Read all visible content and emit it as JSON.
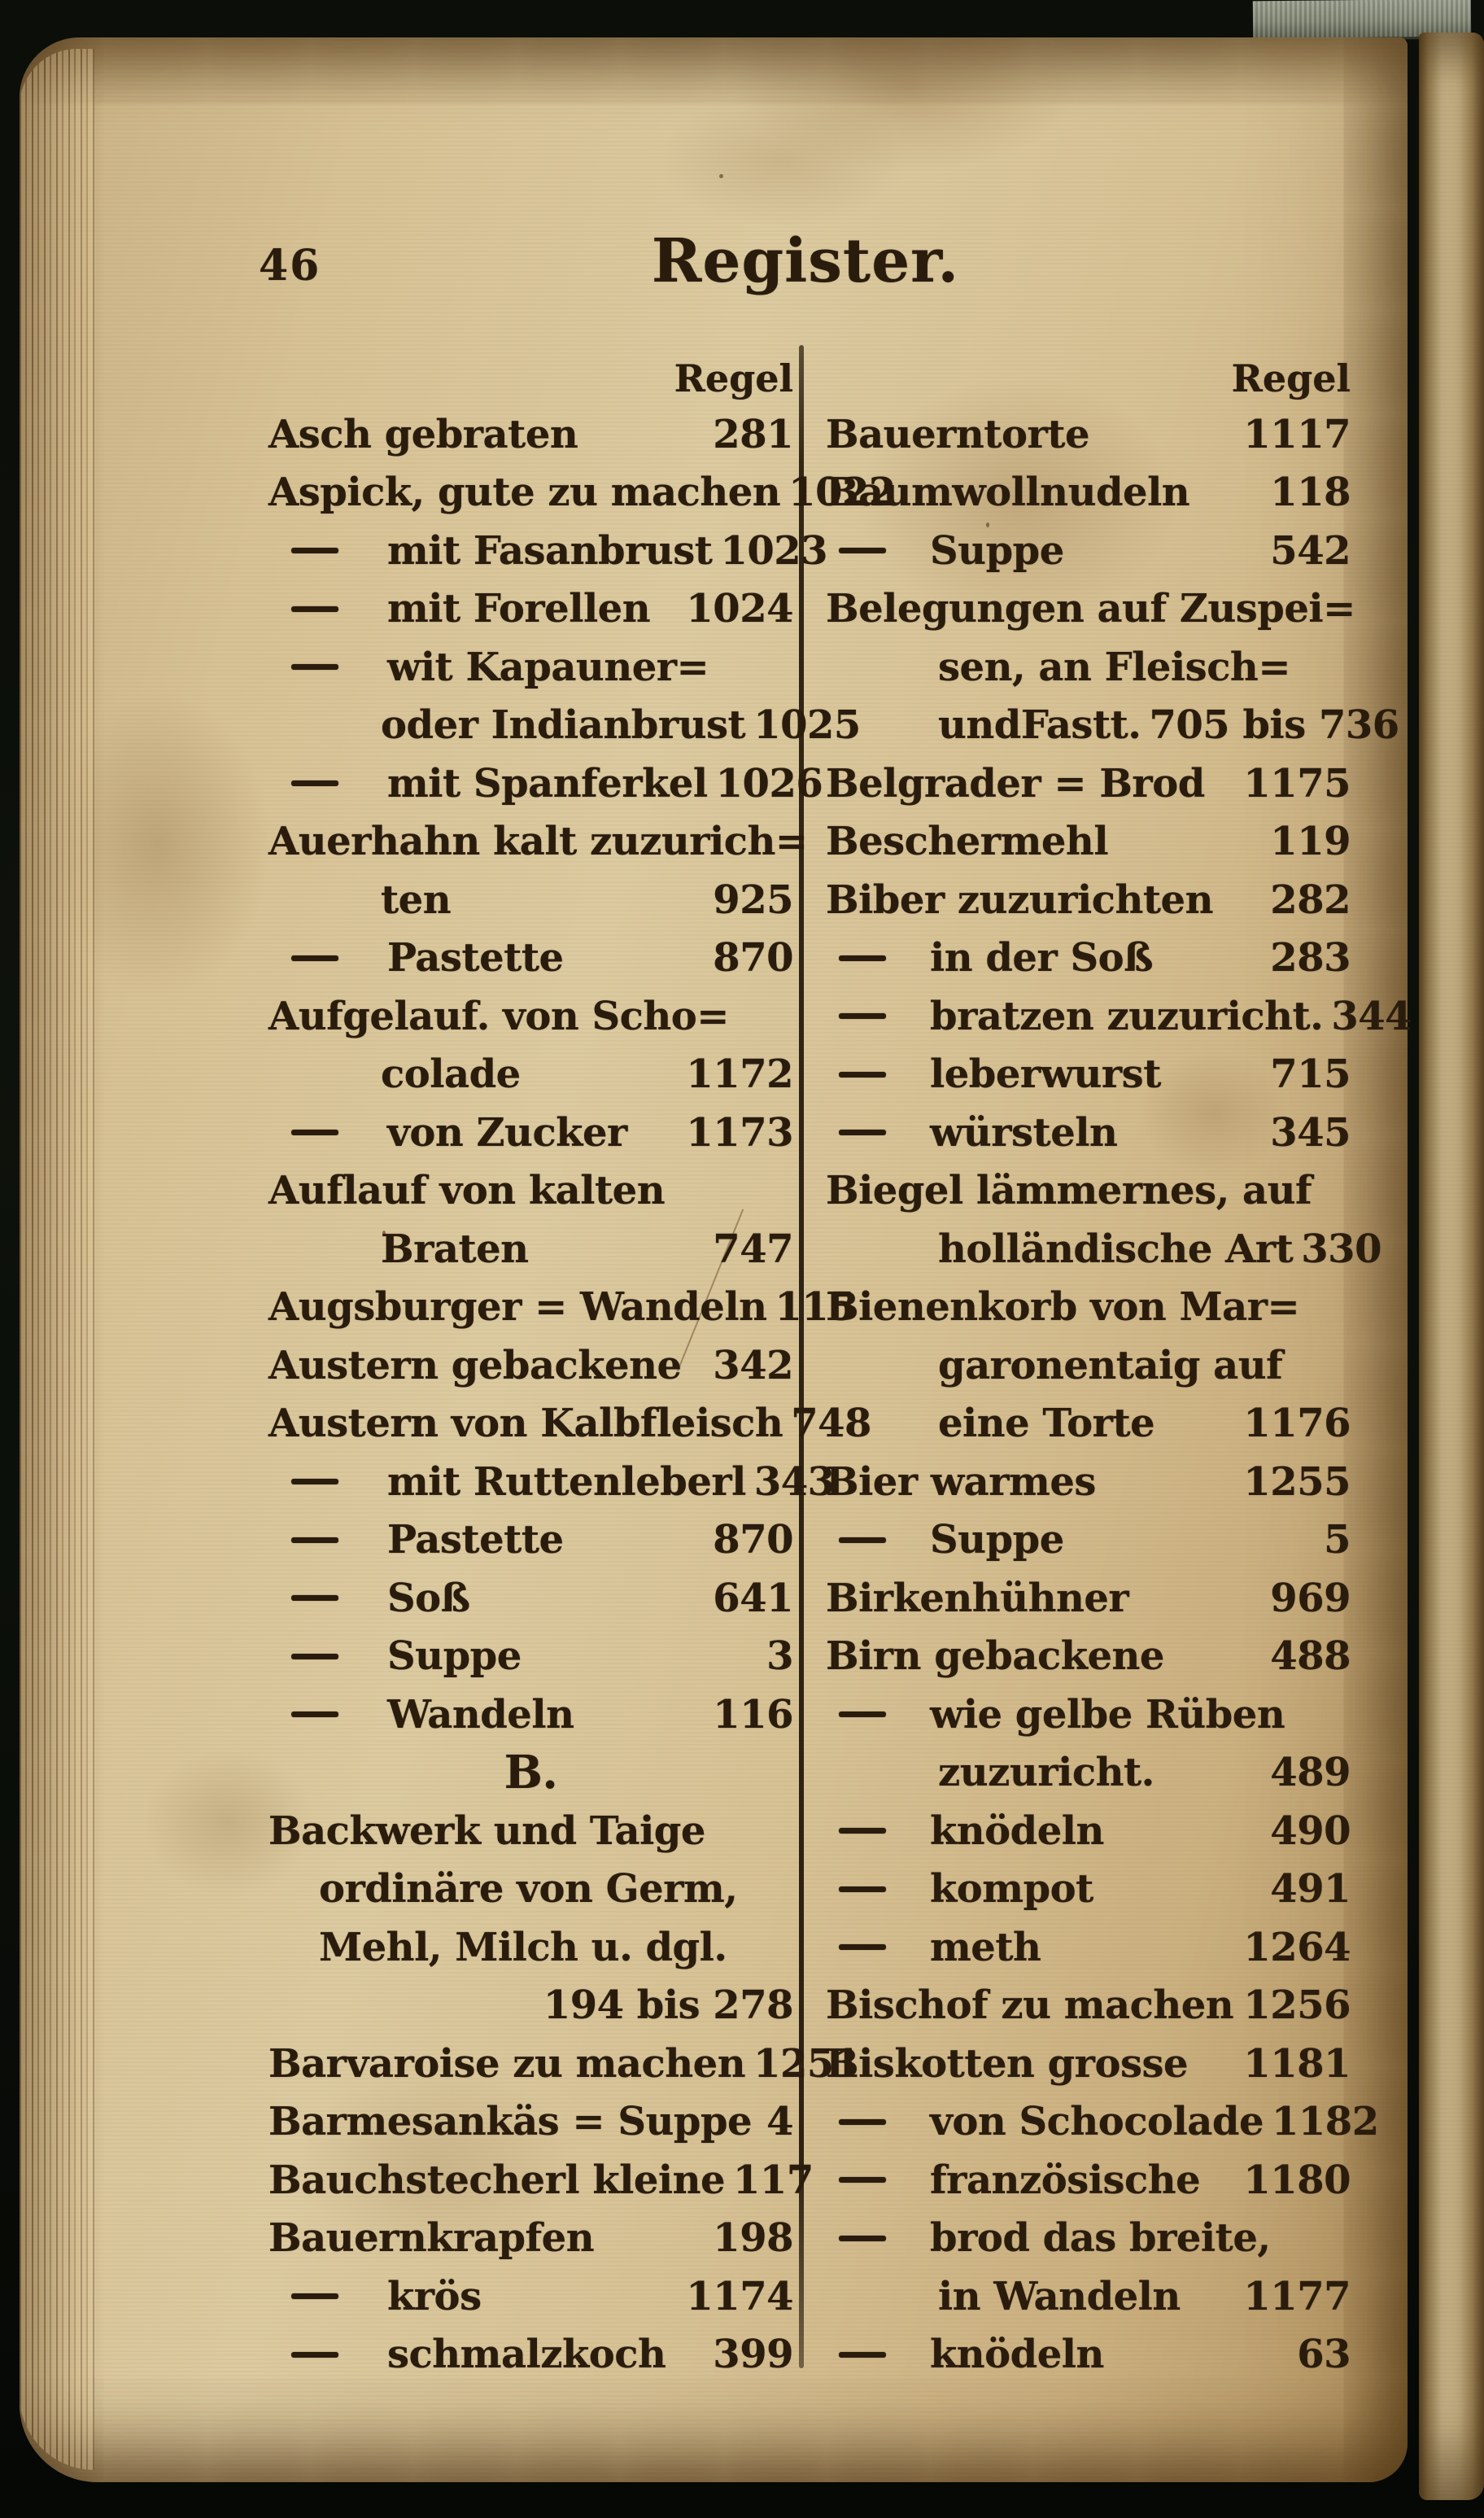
{
  "page": {
    "page_number": "46",
    "title": "Register.",
    "left_column": {
      "header": "Regel",
      "entries": [
        {
          "text": "Asch gebraten",
          "num": "281",
          "style": "main"
        },
        {
          "text": "Aspick, gute zu machen",
          "num": "1022",
          "style": "main"
        },
        {
          "text": "mit Fasanbrust",
          "num": "1023",
          "style": "dash"
        },
        {
          "text": "mit Forellen",
          "num": "1024",
          "style": "dash"
        },
        {
          "text": "wit Kapauner=",
          "num": "",
          "style": "dash"
        },
        {
          "text": "oder Indianbrust",
          "num": "1025",
          "style": "cont"
        },
        {
          "text": "mit Spanferkel",
          "num": "1026",
          "style": "dash"
        },
        {
          "text": "Auerhahn kalt zuzurich=",
          "num": "",
          "style": "main"
        },
        {
          "text": "ten",
          "num": "925",
          "style": "cont"
        },
        {
          "text": "Pastette",
          "num": "870",
          "style": "dash"
        },
        {
          "text": "Aufgelauf. von Scho=",
          "num": "",
          "style": "main"
        },
        {
          "text": "colade",
          "num": "1172",
          "style": "cont"
        },
        {
          "text": "von Zucker",
          "num": "1173",
          "style": "dash"
        },
        {
          "text": "Auflauf von kalten",
          "num": "",
          "style": "main"
        },
        {
          "text": "Braten",
          "num": "747",
          "style": "cont"
        },
        {
          "text": "Augsburger = Wandeln",
          "num": "115",
          "style": "main"
        },
        {
          "text": "Austern gebackene",
          "num": "342",
          "style": "main"
        },
        {
          "text": "Austern von Kalbfleisch",
          "num": "748",
          "style": "main"
        },
        {
          "text": "mit Ruttenleberl",
          "num": "343",
          "style": "dash"
        },
        {
          "text": "Pastette",
          "num": "870",
          "style": "dash"
        },
        {
          "text": "Soß",
          "num": "641",
          "style": "dash"
        },
        {
          "text": "Suppe",
          "num": "3",
          "style": "dash"
        },
        {
          "text": "Wandeln",
          "num": "116",
          "style": "dash"
        },
        {
          "text": "B.",
          "num": "",
          "style": "section"
        },
        {
          "text": "Backwerk und Taige",
          "num": "",
          "style": "main"
        },
        {
          "text": "ordinäre von Germ,",
          "num": "",
          "style": "cont1"
        },
        {
          "text": "Mehl, Milch u. dgl.",
          "num": "",
          "style": "cont1"
        },
        {
          "text": "",
          "num": "194 bis 278",
          "style": "numline"
        },
        {
          "text": "Barvaroise zu machen",
          "num": "1251",
          "style": "main"
        },
        {
          "text": "Barmesankäs = Suppe",
          "num": "4",
          "style": "main"
        },
        {
          "text": "Bauchstecherl kleine",
          "num": "117",
          "style": "main"
        },
        {
          "text": "Bauernkrapfen",
          "num": "198",
          "style": "main"
        },
        {
          "text": "krös",
          "num": "1174",
          "style": "dash"
        },
        {
          "text": "schmalzkoch",
          "num": "399",
          "style": "dash"
        }
      ]
    },
    "right_column": {
      "header": "Regel",
      "entries": [
        {
          "text": "Bauerntorte",
          "num": "1117",
          "style": "main"
        },
        {
          "text": "Baumwollnudeln",
          "num": "118",
          "style": "main"
        },
        {
          "text": "Suppe",
          "num": "542",
          "style": "dash"
        },
        {
          "text": "Belegungen auf Zuspei=",
          "num": "",
          "style": "main"
        },
        {
          "text": "sen, an Fleisch=",
          "num": "",
          "style": "cont"
        },
        {
          "text": "undFastt.",
          "num": "705 bis 736",
          "style": "cont"
        },
        {
          "text": "Belgrader = Brod",
          "num": "1175",
          "style": "main"
        },
        {
          "text": "Beschermehl",
          "num": "119",
          "style": "main"
        },
        {
          "text": "Biber zuzurichten",
          "num": "282",
          "style": "main"
        },
        {
          "text": "in der Soß",
          "num": "283",
          "style": "dash"
        },
        {
          "text": "bratzen zuzuricht.",
          "num": "344",
          "style": "dash"
        },
        {
          "text": "leberwurst",
          "num": "715",
          "style": "dash"
        },
        {
          "text": "würsteln",
          "num": "345",
          "style": "dash"
        },
        {
          "text": "Biegel lämmernes, auf",
          "num": "",
          "style": "main"
        },
        {
          "text": "holländische Art",
          "num": "330",
          "style": "cont"
        },
        {
          "text": "Bienenkorb von Mar=",
          "num": "",
          "style": "main"
        },
        {
          "text": "garonentaig auf",
          "num": "",
          "style": "cont"
        },
        {
          "text": "eine Torte",
          "num": "1176",
          "style": "cont"
        },
        {
          "text": "Bier warmes",
          "num": "1255",
          "style": "main"
        },
        {
          "text": "Suppe",
          "num": "5",
          "style": "dash"
        },
        {
          "text": "Birkenhühner",
          "num": "969",
          "style": "main"
        },
        {
          "text": "Birn gebackene",
          "num": "488",
          "style": "main"
        },
        {
          "text": "wie gelbe Rüben",
          "num": "",
          "style": "dash"
        },
        {
          "text": "zuzuricht.",
          "num": "489",
          "style": "cont"
        },
        {
          "text": "knödeln",
          "num": "490",
          "style": "dash"
        },
        {
          "text": "kompot",
          "num": "491",
          "style": "dash"
        },
        {
          "text": "meth",
          "num": "1264",
          "style": "dash"
        },
        {
          "text": "Bischof zu machen",
          "num": "1256",
          "style": "main"
        },
        {
          "text": "Biskotten grosse",
          "num": "1181",
          "style": "main"
        },
        {
          "text": "von Schocolade",
          "num": "1182",
          "style": "dash"
        },
        {
          "text": "französische",
          "num": "1180",
          "style": "dash"
        },
        {
          "text": "brod das breite,",
          "num": "",
          "style": "dash"
        },
        {
          "text": "in Wandeln",
          "num": "1177",
          "style": "cont"
        },
        {
          "text": "knödeln",
          "num": "63",
          "style": "dash"
        }
      ]
    }
  }
}
